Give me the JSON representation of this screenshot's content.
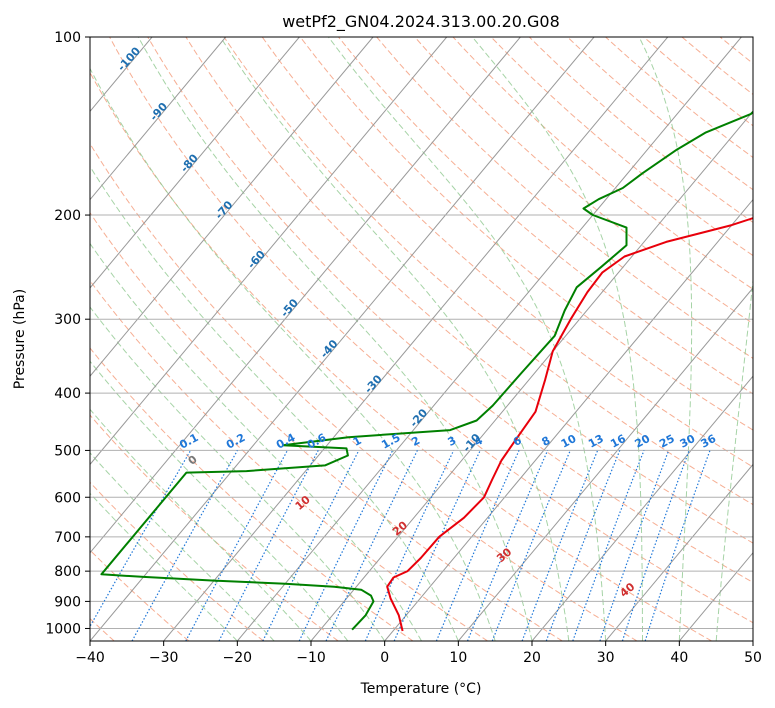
{
  "chart_data": {
    "type": "line",
    "title": "wetPf2_GN04.2024.313.00.20.G08",
    "xlabel": "Temperature (°C)",
    "ylabel": "Pressure (hPa)",
    "xlim": [
      -40,
      50
    ],
    "ylim_hpa": [
      1050,
      100
    ],
    "y_scale": "log",
    "grid": true,
    "x_ticks": [
      -40,
      -30,
      -20,
      -10,
      0,
      10,
      20,
      30,
      40,
      50
    ],
    "y_ticks": [
      100,
      200,
      300,
      400,
      500,
      600,
      700,
      800,
      900,
      1000
    ],
    "colors": {
      "temperature": "#e8000b",
      "dewpoint": "#008000",
      "isotherm": "#999999",
      "dry_adiabat": "#f5a080",
      "moist_adiabat": "#90c890",
      "mixing_ratio": "#1f77d8",
      "isotherm_label": "#1f6fb0",
      "theta_label": "#d03030"
    },
    "series": [
      {
        "name": "temperature",
        "points": [
          [
            1.3,
            1010
          ],
          [
            -1,
            950
          ],
          [
            -4,
            890
          ],
          [
            -5.8,
            850
          ],
          [
            -6,
            820
          ],
          [
            -4.8,
            800
          ],
          [
            -4.5,
            760
          ],
          [
            -4.4,
            700
          ],
          [
            -3.2,
            650
          ],
          [
            -2.8,
            600
          ],
          [
            -3.7,
            560
          ],
          [
            -4.6,
            520
          ],
          [
            -5,
            480
          ],
          [
            -5.5,
            430
          ],
          [
            -7.8,
            380
          ],
          [
            -10,
            340
          ],
          [
            -11.2,
            300
          ],
          [
            -12,
            270
          ],
          [
            -12.2,
            250
          ],
          [
            -11,
            235
          ],
          [
            -7,
            222
          ],
          [
            0,
            208
          ],
          [
            5,
            195
          ],
          [
            9,
            178
          ],
          [
            14,
            160
          ],
          [
            19,
            140
          ],
          [
            25,
            125
          ],
          [
            31,
            115
          ],
          [
            33.5,
            108
          ],
          [
            35,
            103
          ],
          [
            35.8,
            100
          ]
        ]
      },
      {
        "name": "dewpoint",
        "points": [
          [
            -5.7,
            1005
          ],
          [
            -5.5,
            950
          ],
          [
            -6,
            900
          ],
          [
            -7,
            880
          ],
          [
            -9,
            860
          ],
          [
            -13,
            850
          ],
          [
            -20,
            840
          ],
          [
            -30,
            830
          ],
          [
            -40,
            818
          ],
          [
            -46,
            810
          ],
          [
            -46,
            545
          ],
          [
            -38,
            542
          ],
          [
            -28,
            530
          ],
          [
            -26,
            510
          ],
          [
            -27,
            496
          ],
          [
            -36,
            490
          ],
          [
            -28,
            475
          ],
          [
            -15,
            462
          ],
          [
            -12.5,
            445
          ],
          [
            -12,
            420
          ],
          [
            -11.8,
            370
          ],
          [
            -11.5,
            320
          ],
          [
            -13,
            290
          ],
          [
            -14,
            265
          ],
          [
            -13,
            245
          ],
          [
            -12,
            225
          ],
          [
            -14,
            210
          ],
          [
            -20,
            200
          ],
          [
            -22,
            195
          ],
          [
            -21,
            188
          ],
          [
            -19,
            180
          ],
          [
            -18,
            170
          ],
          [
            -16,
            155
          ],
          [
            -14,
            145
          ],
          [
            -10,
            135
          ],
          [
            -9.5,
            125
          ],
          [
            -9,
            118
          ],
          [
            -7,
            110
          ],
          [
            -3,
            102
          ],
          [
            -2,
            100
          ]
        ]
      }
    ],
    "isotherm_labels": [
      "-100",
      "-90",
      "-80",
      "-70",
      "-60",
      "-50",
      "-40",
      "-30",
      "-20",
      "-10"
    ],
    "mixing_ratio_labels": [
      "0.1",
      "0.2",
      "0.4",
      "0.6",
      "1",
      "1.5",
      "2",
      "3",
      "4",
      "6",
      "8",
      "10",
      "13",
      "16",
      "20",
      "25",
      "30",
      "36"
    ],
    "theta_labels": [
      "0",
      "10",
      "20",
      "30",
      "40"
    ]
  }
}
